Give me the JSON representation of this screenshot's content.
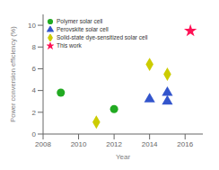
{
  "chart_data": {
    "type": "scatter",
    "xlabel": "Year",
    "ylabel": "Power conversion efficiency (%)",
    "xlim": [
      2008,
      2017
    ],
    "ylim": [
      0,
      11
    ],
    "xticks": [
      2008,
      2010,
      2012,
      2014,
      2016
    ],
    "yticks": [
      0,
      2,
      4,
      6,
      8,
      10
    ],
    "grid": false,
    "legend": "upper left",
    "series": [
      {
        "name": "Polymer solar cell",
        "color": "#22aa22",
        "marker": "circle",
        "x": [
          2009,
          2012
        ],
        "values": [
          3.8,
          2.3
        ]
      },
      {
        "name": "Perovskite solar cell",
        "color": "#3355cc",
        "marker": "triangle",
        "x": [
          2014,
          2015,
          2015
        ],
        "values": [
          3.2,
          3.8,
          3.0
        ]
      },
      {
        "name": "Solid-state dye-sensitized solar cell",
        "color": "#cccc00",
        "marker": "diamond",
        "x": [
          2011,
          2014,
          2015
        ],
        "values": [
          1.1,
          6.4,
          5.5
        ]
      },
      {
        "name": "This work",
        "color": "#ff1155",
        "marker": "star",
        "x": [
          2016.3
        ],
        "values": [
          9.49
        ]
      }
    ]
  }
}
